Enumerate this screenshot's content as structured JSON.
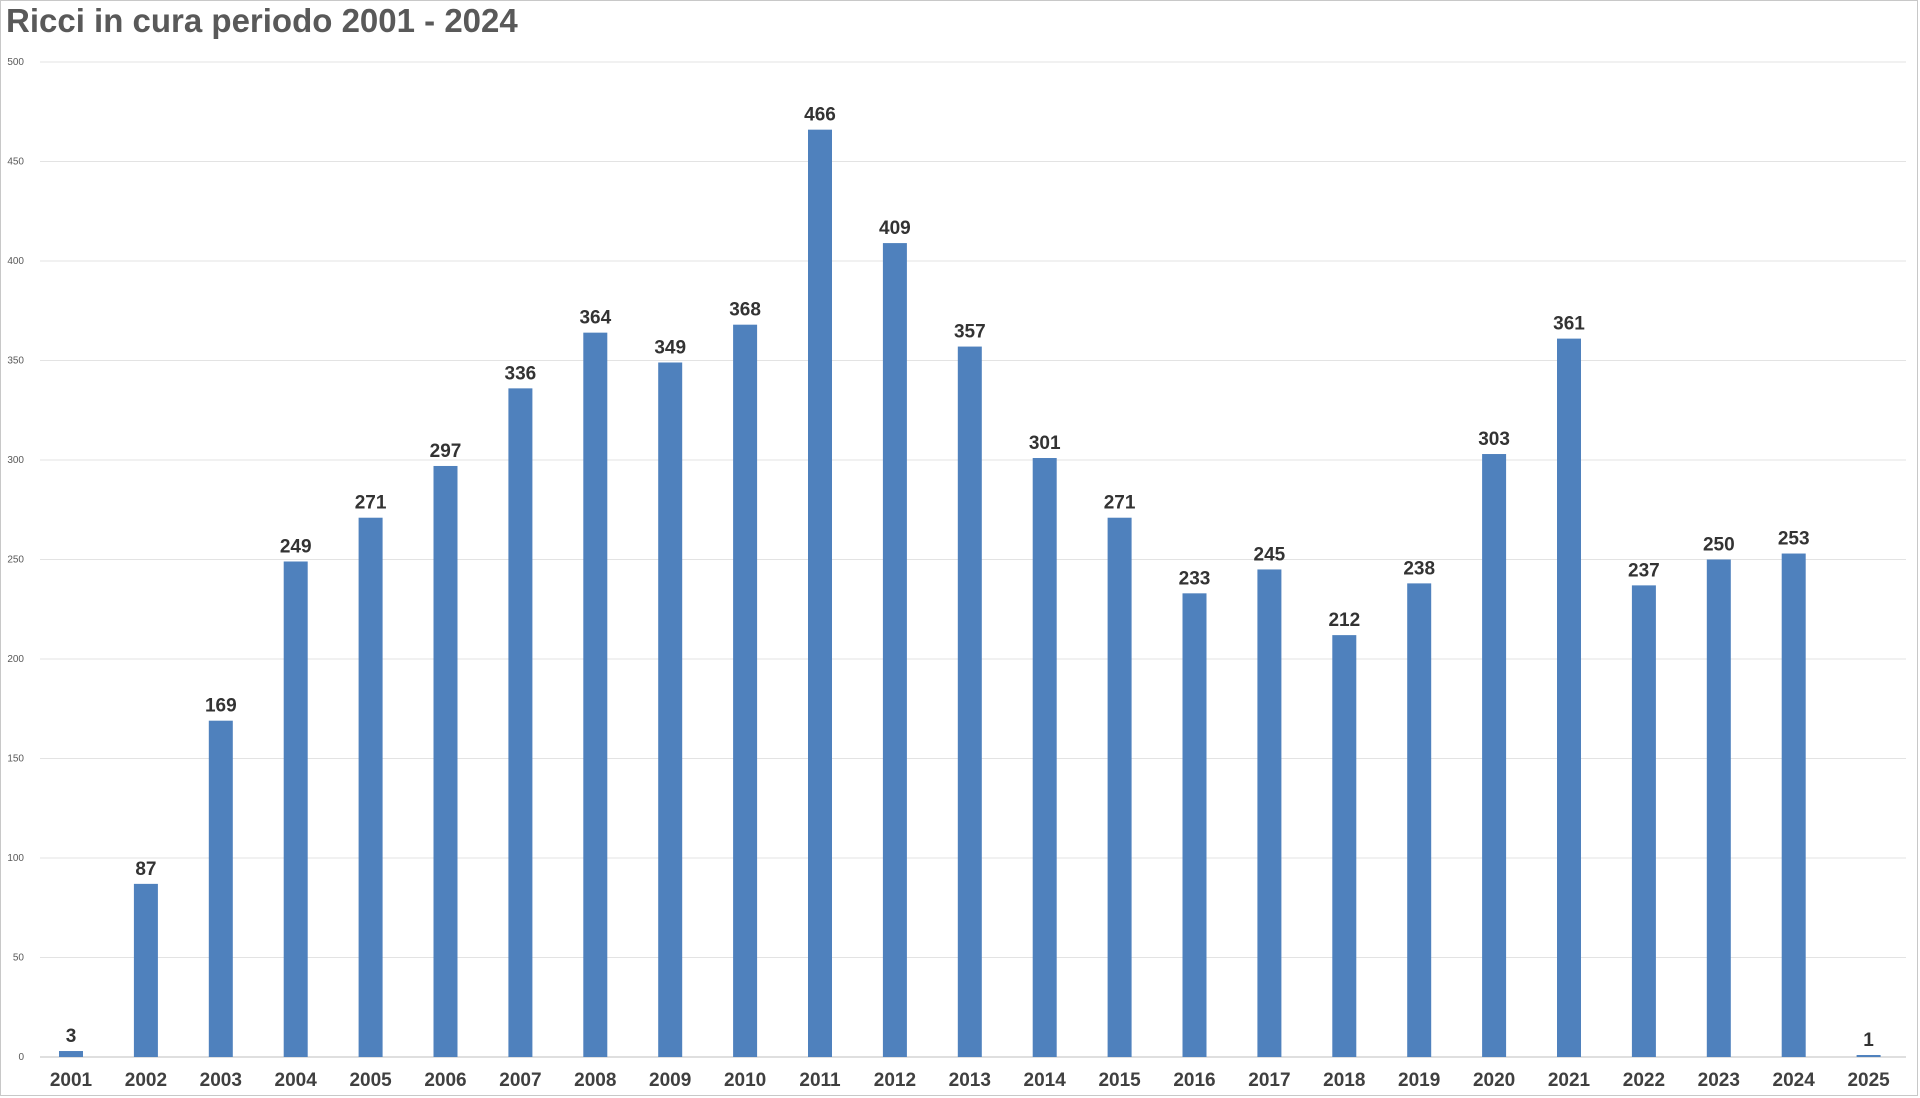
{
  "chart_data": {
    "type": "bar",
    "title": "Ricci in cura periodo 2001 - 2024",
    "xlabel": "",
    "ylabel": "",
    "ylim": [
      0,
      500
    ],
    "yticks": [
      0,
      50,
      100,
      150,
      200,
      250,
      300,
      350,
      400,
      450,
      500
    ],
    "grid": true,
    "legend": "none",
    "bar_color": "#4f81bd",
    "categories": [
      "2001",
      "2002",
      "2003",
      "2004",
      "2005",
      "2006",
      "2007",
      "2008",
      "2009",
      "2010",
      "2011",
      "2012",
      "2013",
      "2014",
      "2015",
      "2016",
      "2017",
      "2018",
      "2019",
      "2020",
      "2021",
      "2022",
      "2023",
      "2024",
      "2025"
    ],
    "values": [
      3,
      87,
      169,
      249,
      271,
      297,
      336,
      364,
      349,
      368,
      466,
      409,
      357,
      301,
      271,
      233,
      245,
      212,
      238,
      303,
      361,
      237,
      250,
      253,
      1
    ]
  }
}
